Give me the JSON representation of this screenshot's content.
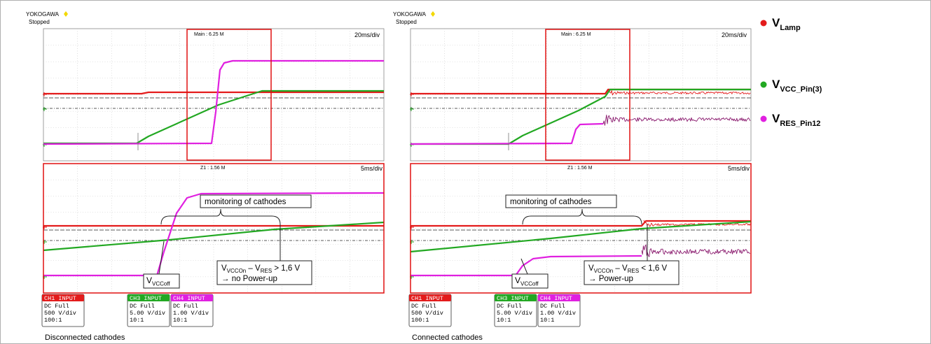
{
  "brand": "YOKOGAWA",
  "colors": {
    "ch1": "#e31b1b",
    "ch3": "#22a822",
    "ch4": "#e020e0",
    "box": "#e01010",
    "brand_dot": "#f2d800"
  },
  "scopes": [
    {
      "id": "left",
      "status": "Stopped",
      "main_label": "Main : 6.25 M",
      "main_timebase": "20ms/div",
      "zoom_label": "Z1 : 1.56 M",
      "zoom_timebase": "5ms/div",
      "annotation_top": "monitoring of cathodes",
      "vcc_off": {
        "main": "V",
        "sub": "VCCoff"
      },
      "formula": {
        "v1": "V",
        "s1": "VCCOn",
        "mid": " – V",
        "s2": "RES",
        "rel": " > 1,6 V",
        "line2": "→ no Power-up"
      },
      "caption": "Disconnected cathodes",
      "channels": [
        {
          "name": "CH1 INPUT",
          "coupling": "DC Full",
          "scale": "500 V/div",
          "probe": "100:1"
        },
        {
          "name": "CH3 INPUT",
          "coupling": "DC Full",
          "scale": "5.00 V/div",
          "probe": "10:1"
        },
        {
          "name": "CH4 INPUT",
          "coupling": "DC Full",
          "scale": "1.00 V/div",
          "probe": "10:1"
        }
      ]
    },
    {
      "id": "right",
      "status": "Stopped",
      "main_label": "Main : 6.25 M",
      "main_timebase": "20ms/div",
      "zoom_label": "Z1 : 1.56 M",
      "zoom_timebase": "5ms/div",
      "annotation_top": "monitoring of cathodes",
      "vcc_off": {
        "main": "V",
        "sub": "VCCoff"
      },
      "formula": {
        "v1": "V",
        "s1": "VCCOn",
        "mid": " – V",
        "s2": "RES",
        "rel": " < 1,6 V",
        "line2": "→ Power-up"
      },
      "caption": "Connected cathodes",
      "channels": [
        {
          "name": "CH1 INPUT",
          "coupling": "DC Full",
          "scale": "500 V/div",
          "probe": "100:1"
        },
        {
          "name": "CH3 INPUT",
          "coupling": "DC Full",
          "scale": "5.00 V/div",
          "probe": "10:1"
        },
        {
          "name": "CH4 INPUT",
          "coupling": "DC Full",
          "scale": "1.00 V/div",
          "probe": "10:1"
        }
      ]
    }
  ],
  "legend": [
    {
      "main": "V",
      "sub": "Lamp",
      "color": "#e31b1b"
    },
    {
      "main": "V",
      "sub": "VCC_Pin(3)",
      "color": "#22a822"
    },
    {
      "main": "V",
      "sub": "RES_Pin12",
      "color": "#e020e0"
    }
  ]
}
